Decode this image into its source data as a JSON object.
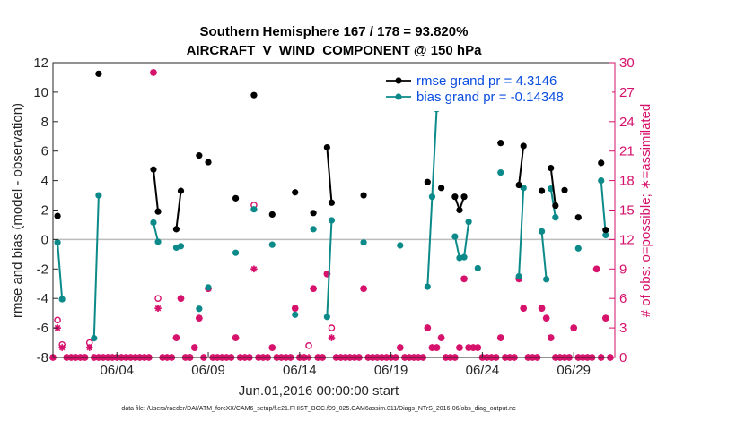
{
  "chart_data": {
    "type": "line",
    "title_line1": "Southern Hemisphere 167 / 178 = 93.820%",
    "title_line2": "AIRCRAFT_V_WIND_COMPONENT @ 150 hPa",
    "xlabel": "Jun.01,2016 00:00:00 start",
    "ylabel_left": "rmse and bias (model - observation)",
    "ylabel_right": "# of obs: o=possible; ∗=assimilated",
    "footer": "data file: /Users/raeder/DAI/ATM_forcXX/CAM6_setup/f.e21.FHIST_BGC.f09_025.CAM6assim.011/Diags_NTrS_2016-06/obs_diag_output.nc",
    "xlim": [
      0,
      30.75
    ],
    "ylim_left": [
      -8,
      12
    ],
    "ylim_right": [
      0,
      30
    ],
    "yticks_left": [
      -8,
      -6,
      -4,
      -2,
      0,
      2,
      4,
      6,
      8,
      10,
      12
    ],
    "yticks_right": [
      0,
      3,
      6,
      9,
      12,
      15,
      18,
      21,
      24,
      27,
      30
    ],
    "xticks": [
      {
        "x": 3.5,
        "label": "06/04"
      },
      {
        "x": 8.5,
        "label": "06/09"
      },
      {
        "x": 13.5,
        "label": "06/14"
      },
      {
        "x": 18.5,
        "label": "06/19"
      },
      {
        "x": 23.5,
        "label": "06/24"
      },
      {
        "x": 28.5,
        "label": "06/29"
      }
    ],
    "zero_line": 0,
    "colors": {
      "rmse": "#000000",
      "bias": "#0c8a8a",
      "obs": "#d6116b",
      "zero": "#bdbdbd",
      "legend_text": "#0a4ee0"
    },
    "legend": [
      {
        "key": "rmse",
        "label": "rmse grand pr = 4.3146"
      },
      {
        "key": "bias",
        "label": "bias grand pr = -0.14348"
      }
    ],
    "series_rmse": [
      [
        [
          0.25,
          1.6
        ]
      ],
      [
        [
          2.5,
          11.25
        ]
      ],
      [
        [
          5.5,
          4.75
        ],
        [
          5.75,
          1.9
        ]
      ],
      [
        [
          6.75,
          0.7
        ],
        [
          7.0,
          3.3
        ]
      ],
      [
        [
          8.0,
          5.7
        ]
      ],
      [
        [
          8.5,
          5.25
        ]
      ],
      [
        [
          10.0,
          2.8
        ]
      ],
      [
        [
          11.0,
          9.8
        ]
      ],
      [
        [
          12.0,
          1.7
        ]
      ],
      [
        [
          13.25,
          3.2
        ]
      ],
      [
        [
          14.25,
          1.8
        ]
      ],
      [
        [
          15.0,
          6.25
        ],
        [
          15.25,
          2.5
        ]
      ],
      [
        [
          17.0,
          3.0
        ]
      ],
      [
        [
          20.5,
          3.9
        ]
      ],
      [
        [
          21.25,
          3.5
        ]
      ],
      [
        [
          22.0,
          2.9
        ],
        [
          22.25,
          2.0
        ],
        [
          22.5,
          2.9
        ]
      ],
      [
        [
          24.5,
          6.55
        ]
      ],
      [
        [
          25.5,
          3.7
        ],
        [
          25.75,
          6.35
        ]
      ],
      [
        [
          26.75,
          3.3
        ]
      ],
      [
        [
          27.25,
          4.85
        ],
        [
          27.5,
          2.3
        ]
      ],
      [
        [
          28.0,
          3.35
        ]
      ],
      [
        [
          28.75,
          1.5
        ]
      ],
      [
        [
          30.0,
          5.2
        ]
      ],
      [
        [
          30.25,
          0.65
        ]
      ]
    ],
    "series_bias": [
      [
        [
          0.25,
          -0.2
        ],
        [
          0.5,
          -4.05
        ]
      ],
      [
        [
          2.25,
          -6.7
        ],
        [
          2.5,
          3.0
        ]
      ],
      [
        [
          5.5,
          1.15
        ],
        [
          5.75,
          -0.15
        ]
      ],
      [
        [
          6.75,
          -0.55
        ],
        [
          7.0,
          -0.45
        ]
      ],
      [
        [
          8.0,
          -4.7
        ]
      ],
      [
        [
          8.5,
          -3.25
        ]
      ],
      [
        [
          10.0,
          -0.9
        ]
      ],
      [
        [
          11.0,
          2.05
        ]
      ],
      [
        [
          12.0,
          -0.35
        ]
      ],
      [
        [
          13.25,
          -5.1
        ]
      ],
      [
        [
          14.25,
          0.7
        ]
      ],
      [
        [
          15.0,
          -5.25
        ],
        [
          15.25,
          1.3
        ]
      ],
      [
        [
          17.0,
          -0.2
        ]
      ],
      [
        [
          19.0,
          -0.4
        ]
      ],
      [
        [
          20.5,
          -3.2
        ],
        [
          20.75,
          2.9
        ],
        [
          21.0,
          8.85
        ]
      ],
      [
        [
          22.0,
          0.2
        ],
        [
          22.25,
          -1.25
        ],
        [
          22.5,
          -1.2
        ],
        [
          22.75,
          1.2
        ]
      ],
      [
        [
          23.25,
          -1.95
        ]
      ],
      [
        [
          24.5,
          4.55
        ]
      ],
      [
        [
          25.5,
          -2.5
        ],
        [
          25.75,
          3.5
        ]
      ],
      [
        [
          26.75,
          0.55
        ],
        [
          27.0,
          -2.7
        ]
      ],
      [
        [
          27.25,
          3.45
        ],
        [
          27.5,
          1.5
        ]
      ],
      [
        [
          28.75,
          -0.6
        ]
      ],
      [
        [
          30.0,
          4.0
        ],
        [
          30.25,
          0.3
        ]
      ]
    ],
    "obs_possible": [
      [
        0,
        0
      ],
      [
        0.25,
        3.8
      ],
      [
        0.5,
        1.3
      ],
      [
        0.75,
        0
      ],
      [
        1,
        0
      ],
      [
        1.25,
        0
      ],
      [
        1.5,
        0
      ],
      [
        1.75,
        0
      ],
      [
        2,
        1.5
      ],
      [
        2.25,
        0
      ],
      [
        2.5,
        0
      ],
      [
        2.75,
        0
      ],
      [
        3,
        0
      ],
      [
        3.25,
        0
      ],
      [
        3.5,
        0
      ],
      [
        3.75,
        0
      ],
      [
        4,
        0
      ],
      [
        4.25,
        0
      ],
      [
        4.5,
        0
      ],
      [
        4.75,
        0
      ],
      [
        5,
        0
      ],
      [
        5.25,
        0
      ],
      [
        5.5,
        29
      ],
      [
        5.75,
        6.0
      ],
      [
        6,
        0
      ],
      [
        6.25,
        0
      ],
      [
        6.5,
        0
      ],
      [
        6.75,
        2.0
      ],
      [
        7,
        6.0
      ],
      [
        7.25,
        0
      ],
      [
        7.5,
        0
      ],
      [
        7.75,
        1.0
      ],
      [
        8,
        4.0
      ],
      [
        8.25,
        0
      ],
      [
        8.5,
        7.0
      ],
      [
        8.75,
        0
      ],
      [
        9,
        0
      ],
      [
        9.25,
        0
      ],
      [
        9.5,
        0
      ],
      [
        9.75,
        0
      ],
      [
        10,
        2.0
      ],
      [
        10.25,
        0
      ],
      [
        10.5,
        0
      ],
      [
        10.75,
        0
      ],
      [
        11,
        15.5
      ],
      [
        11.25,
        0
      ],
      [
        11.5,
        0
      ],
      [
        11.75,
        0
      ],
      [
        12,
        1.0
      ],
      [
        12.25,
        0
      ],
      [
        12.5,
        0
      ],
      [
        12.75,
        0
      ],
      [
        13,
        0
      ],
      [
        13.25,
        5.0
      ],
      [
        13.5,
        0
      ],
      [
        13.75,
        0
      ],
      [
        14,
        1.2
      ],
      [
        14.25,
        7.0
      ],
      [
        14.5,
        0
      ],
      [
        14.75,
        0
      ],
      [
        15,
        8.5
      ],
      [
        15.25,
        3.0
      ],
      [
        15.5,
        0
      ],
      [
        15.75,
        0
      ],
      [
        16,
        0
      ],
      [
        16.25,
        0
      ],
      [
        16.5,
        0
      ],
      [
        16.75,
        0
      ],
      [
        17,
        7.0
      ],
      [
        17.25,
        0
      ],
      [
        17.5,
        0
      ],
      [
        17.75,
        0
      ],
      [
        18,
        0
      ],
      [
        18.25,
        0
      ],
      [
        18.5,
        0
      ],
      [
        18.75,
        0
      ],
      [
        19,
        1.0
      ],
      [
        19.25,
        0
      ],
      [
        19.5,
        0
      ],
      [
        19.75,
        0
      ],
      [
        20,
        0
      ],
      [
        20.25,
        0
      ],
      [
        20.5,
        3.0
      ],
      [
        20.75,
        1.0
      ],
      [
        21,
        1.0
      ],
      [
        21.25,
        2.0
      ],
      [
        21.5,
        0
      ],
      [
        21.75,
        0
      ],
      [
        22,
        0
      ],
      [
        22.25,
        1.0
      ],
      [
        22.5,
        8.0
      ],
      [
        22.75,
        1.0
      ],
      [
        23,
        1.0
      ],
      [
        23.25,
        1.0
      ],
      [
        23.5,
        0
      ],
      [
        23.75,
        0
      ],
      [
        24,
        0
      ],
      [
        24.25,
        0
      ],
      [
        24.5,
        2.0
      ],
      [
        24.75,
        0
      ],
      [
        25,
        0
      ],
      [
        25.25,
        0
      ],
      [
        25.5,
        8.0
      ],
      [
        25.75,
        5.0
      ],
      [
        26,
        0
      ],
      [
        26.25,
        0
      ],
      [
        26.5,
        0
      ],
      [
        26.75,
        5.0
      ],
      [
        27,
        4.0
      ],
      [
        27.25,
        2.0
      ],
      [
        27.5,
        0
      ],
      [
        27.75,
        0
      ],
      [
        28,
        0
      ],
      [
        28.25,
        0
      ],
      [
        28.5,
        3.0
      ],
      [
        28.75,
        0
      ],
      [
        29,
        0
      ],
      [
        29.25,
        0
      ],
      [
        29.5,
        0
      ],
      [
        29.75,
        9.0
      ],
      [
        30,
        0
      ],
      [
        30.25,
        4.0
      ],
      [
        30.5,
        0
      ]
    ],
    "obs_assimilated": [
      [
        0,
        0
      ],
      [
        0.25,
        3.0
      ],
      [
        0.5,
        1.0
      ],
      [
        0.75,
        0
      ],
      [
        1,
        0
      ],
      [
        1.25,
        0
      ],
      [
        1.5,
        0
      ],
      [
        1.75,
        0
      ],
      [
        2,
        1.0
      ],
      [
        2.25,
        0
      ],
      [
        2.5,
        0
      ],
      [
        2.75,
        0
      ],
      [
        3,
        0
      ],
      [
        3.25,
        0
      ],
      [
        3.5,
        0
      ],
      [
        3.75,
        0
      ],
      [
        4,
        0
      ],
      [
        4.25,
        0
      ],
      [
        4.5,
        0
      ],
      [
        4.75,
        0
      ],
      [
        5,
        0
      ],
      [
        5.25,
        0
      ],
      [
        5.5,
        29
      ],
      [
        5.75,
        5.0
      ],
      [
        6,
        0
      ],
      [
        6.25,
        0
      ],
      [
        6.5,
        0
      ],
      [
        6.75,
        2.0
      ],
      [
        7,
        6.0
      ],
      [
        7.25,
        0
      ],
      [
        7.5,
        0
      ],
      [
        7.75,
        1.0
      ],
      [
        8,
        4.0
      ],
      [
        8.25,
        0
      ],
      [
        8.5,
        7.0
      ],
      [
        8.75,
        0
      ],
      [
        9,
        0
      ],
      [
        9.25,
        0
      ],
      [
        9.5,
        0
      ],
      [
        9.75,
        0
      ],
      [
        10,
        2.0
      ],
      [
        10.25,
        0
      ],
      [
        10.5,
        0
      ],
      [
        10.75,
        0
      ],
      [
        11,
        9.0
      ],
      [
        11.25,
        0
      ],
      [
        11.5,
        0
      ],
      [
        11.75,
        0
      ],
      [
        12,
        1.0
      ],
      [
        12.25,
        0
      ],
      [
        12.5,
        0
      ],
      [
        12.75,
        0
      ],
      [
        13,
        0
      ],
      [
        13.25,
        5.0
      ],
      [
        13.5,
        0
      ],
      [
        13.75,
        0
      ],
      [
        14,
        0
      ],
      [
        14.25,
        7.0
      ],
      [
        14.5,
        0
      ],
      [
        14.75,
        0
      ],
      [
        15,
        8.5
      ],
      [
        15.25,
        2.0
      ],
      [
        15.5,
        0
      ],
      [
        15.75,
        0
      ],
      [
        16,
        0
      ],
      [
        16.25,
        0
      ],
      [
        16.5,
        0
      ],
      [
        16.75,
        0
      ],
      [
        17,
        7.0
      ],
      [
        17.25,
        0
      ],
      [
        17.5,
        0
      ],
      [
        17.75,
        0
      ],
      [
        18,
        0
      ],
      [
        18.25,
        0
      ],
      [
        18.5,
        0
      ],
      [
        18.75,
        0
      ],
      [
        19,
        1.0
      ],
      [
        19.25,
        0
      ],
      [
        19.5,
        0
      ],
      [
        19.75,
        0
      ],
      [
        20,
        0
      ],
      [
        20.25,
        0
      ],
      [
        20.5,
        3.0
      ],
      [
        20.75,
        1.0
      ],
      [
        21,
        1.0
      ],
      [
        21.25,
        2.0
      ],
      [
        21.5,
        0
      ],
      [
        21.75,
        0
      ],
      [
        22,
        0
      ],
      [
        22.25,
        1.0
      ],
      [
        22.5,
        8.0
      ],
      [
        22.75,
        1.0
      ],
      [
        23,
        1.0
      ],
      [
        23.25,
        1.0
      ],
      [
        23.5,
        0
      ],
      [
        23.75,
        0
      ],
      [
        24,
        0
      ],
      [
        24.25,
        0
      ],
      [
        24.5,
        2.0
      ],
      [
        24.75,
        0
      ],
      [
        25,
        0
      ],
      [
        25.25,
        0
      ],
      [
        25.5,
        8.0
      ],
      [
        25.75,
        5.0
      ],
      [
        26,
        0
      ],
      [
        26.25,
        0
      ],
      [
        26.5,
        0
      ],
      [
        26.75,
        5.0
      ],
      [
        27,
        4.0
      ],
      [
        27.25,
        2.0
      ],
      [
        27.5,
        0
      ],
      [
        27.75,
        0
      ],
      [
        28,
        0
      ],
      [
        28.25,
        0
      ],
      [
        28.5,
        3.0
      ],
      [
        28.75,
        0
      ],
      [
        29,
        0
      ],
      [
        29.25,
        0
      ],
      [
        29.5,
        0
      ],
      [
        29.75,
        9.0
      ],
      [
        30,
        0
      ],
      [
        30.25,
        4.0
      ],
      [
        30.5,
        0
      ]
    ]
  }
}
